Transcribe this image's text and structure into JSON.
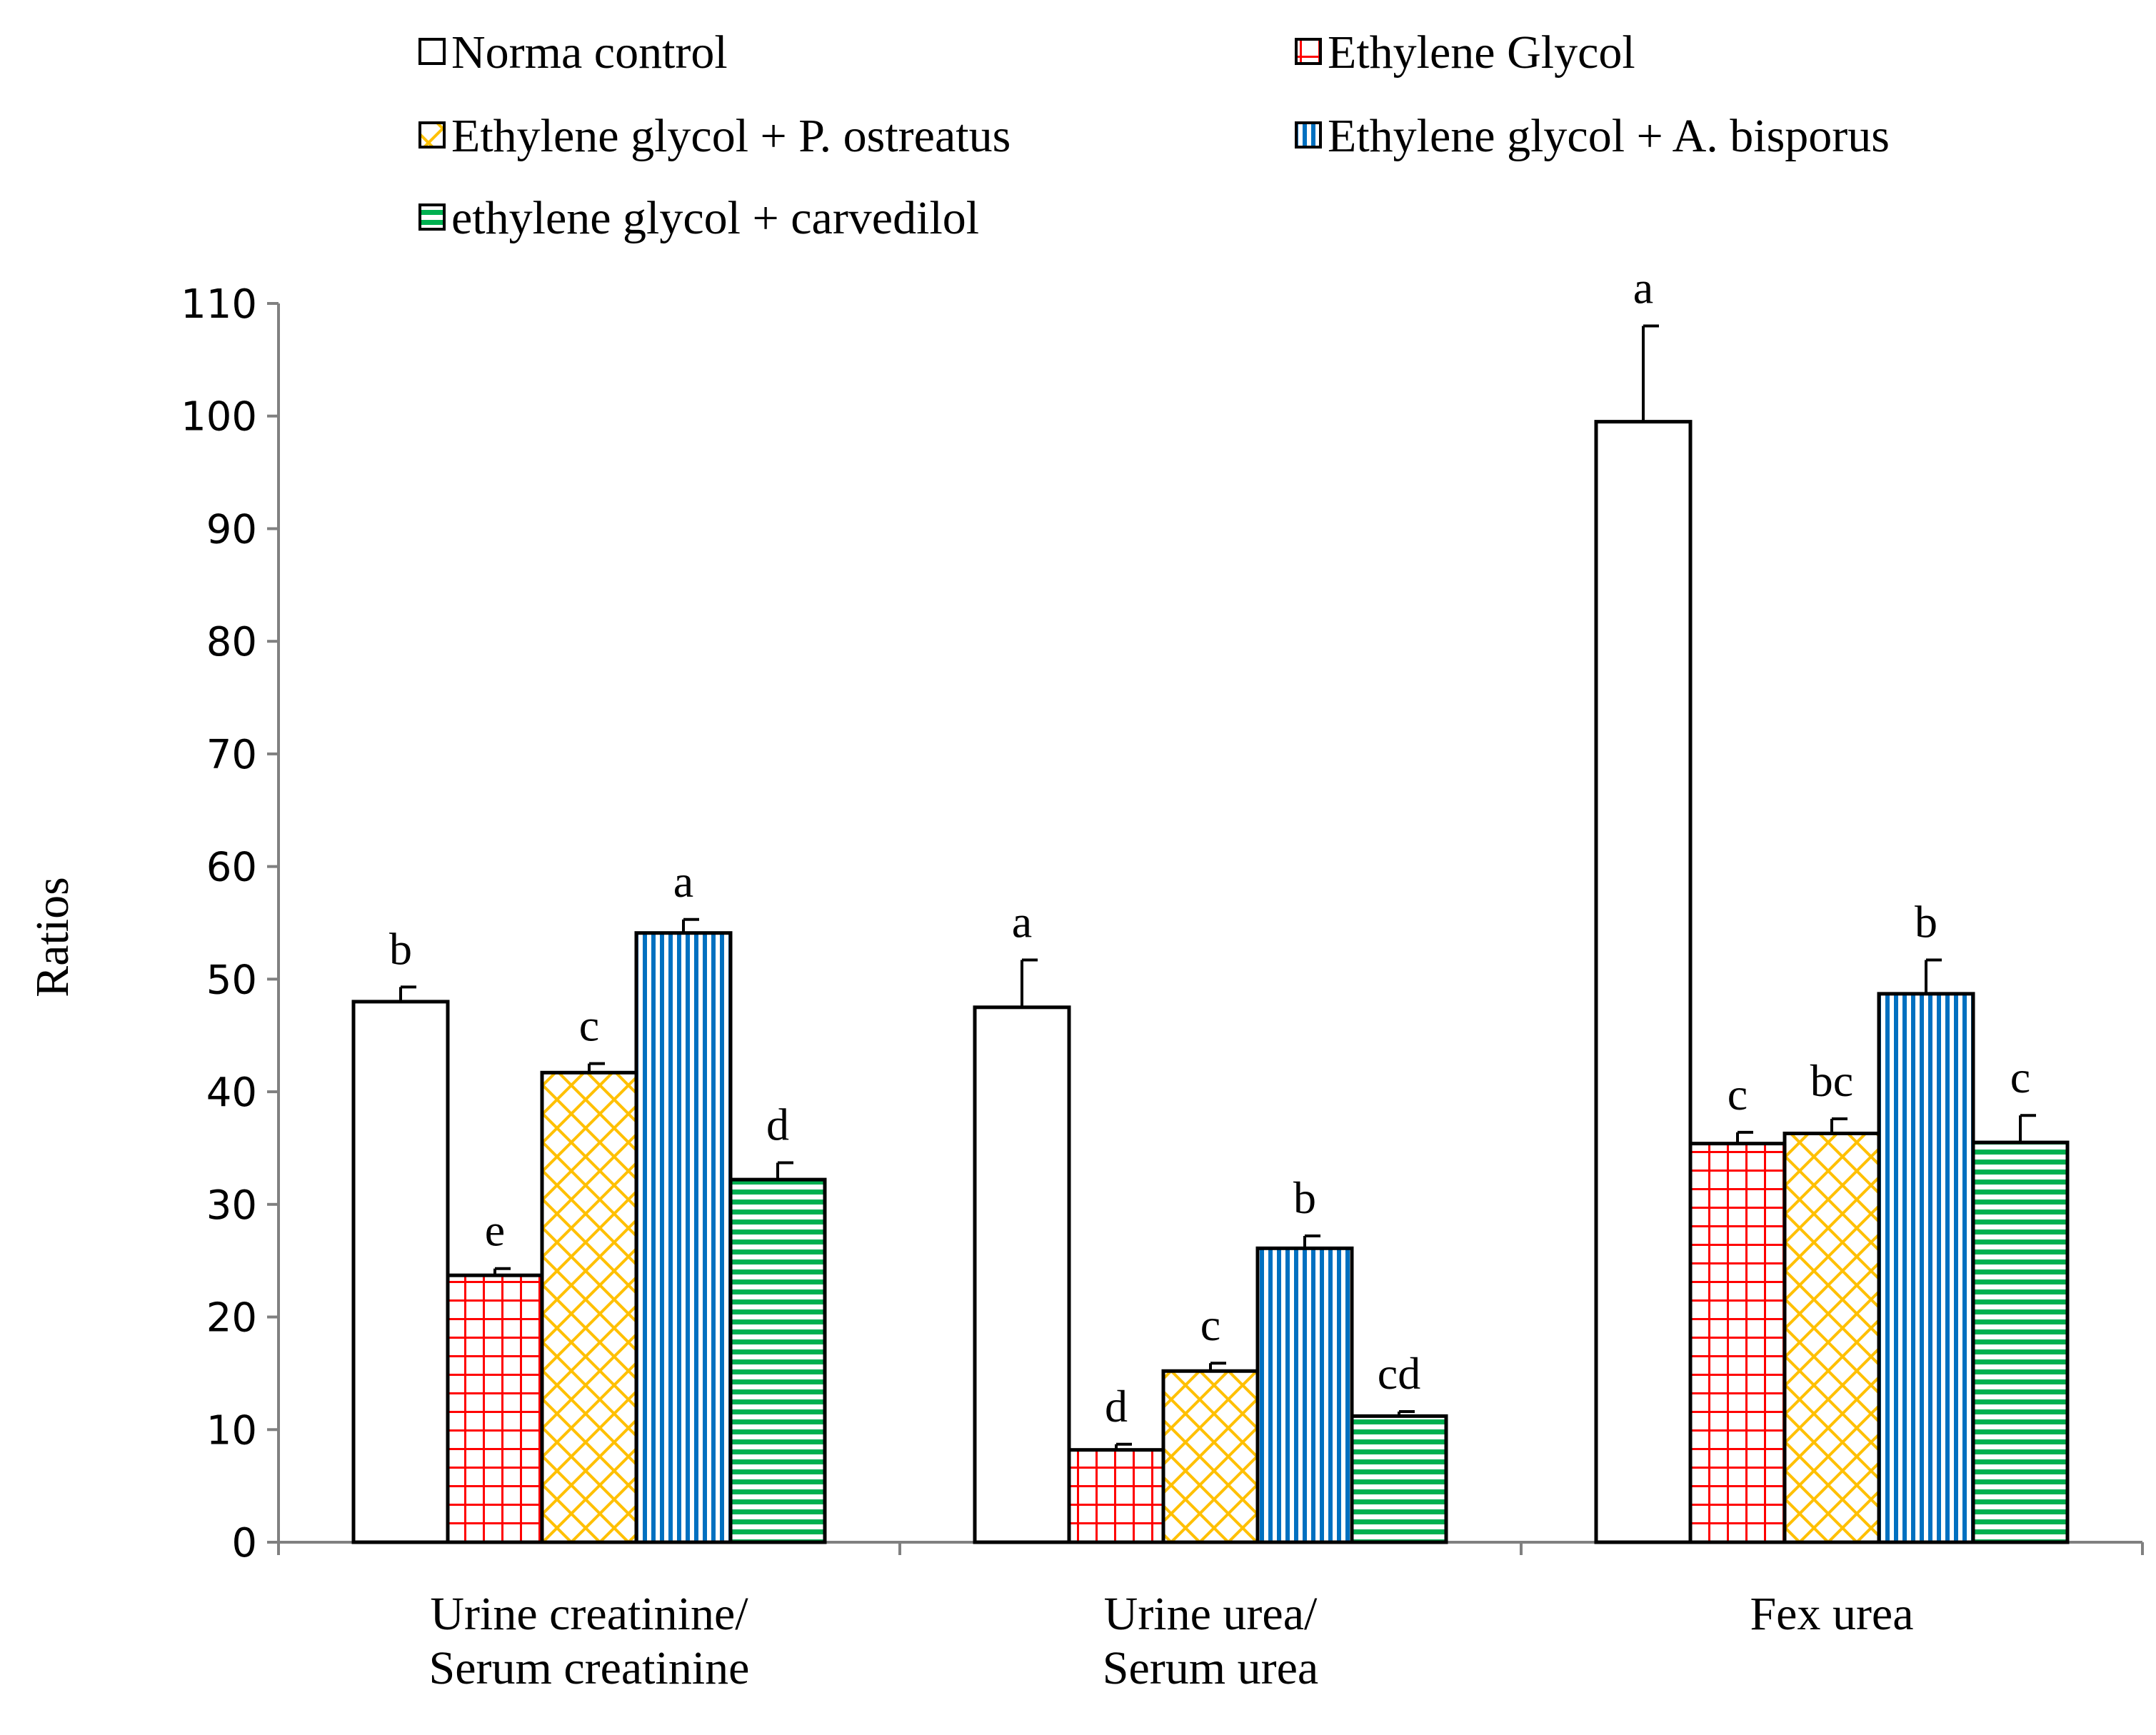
{
  "chart_data": {
    "type": "bar",
    "title": "",
    "xlabel": "",
    "ylabel": "Ratios",
    "ylim": [
      0,
      110
    ],
    "yticks": [
      0,
      10,
      20,
      30,
      40,
      50,
      60,
      70,
      80,
      90,
      100,
      110
    ],
    "grid": false,
    "legend_position": "top",
    "categories": [
      [
        "Urine creatinine/",
        "Serum creatinine"
      ],
      [
        "Urine urea/",
        "Serum urea"
      ],
      [
        "Fex urea"
      ]
    ],
    "series": [
      {
        "name": "Norma control",
        "pattern": "none",
        "color": "#ffffff",
        "values": [
          48,
          47.5,
          99.5
        ],
        "errors": [
          1.3,
          4.2,
          8.5
        ],
        "labels": [
          "b",
          "a",
          "a"
        ]
      },
      {
        "name": "Ethylene Glycol",
        "pattern": "grid",
        "color": "#ff0000",
        "values": [
          23.7,
          8.2,
          35.4
        ],
        "errors": [
          0.6,
          0.5,
          1.0
        ],
        "labels": [
          "e",
          "d",
          "c"
        ]
      },
      {
        "name": "Ethylene glycol + P. ostreatus",
        "pattern": "diamond",
        "color": "#ffc000",
        "values": [
          41.7,
          15.2,
          36.3
        ],
        "errors": [
          0.8,
          0.7,
          1.3
        ],
        "labels": [
          "c",
          "c",
          "bc"
        ]
      },
      {
        "name": "Ethylene glycol + A. bisporus",
        "pattern": "vertical",
        "color": "#0070c0",
        "values": [
          54.1,
          26.1,
          48.7
        ],
        "errors": [
          1.2,
          1.1,
          3.0
        ],
        "labels": [
          "a",
          "b",
          "b"
        ]
      },
      {
        "name": "ethylene glycol + carvedilol",
        "pattern": "horizontal",
        "color": "#00b050",
        "values": [
          32.2,
          11.2,
          35.5
        ],
        "errors": [
          1.5,
          0.4,
          2.4
        ],
        "labels": [
          "d",
          "cd",
          "c"
        ]
      }
    ]
  }
}
